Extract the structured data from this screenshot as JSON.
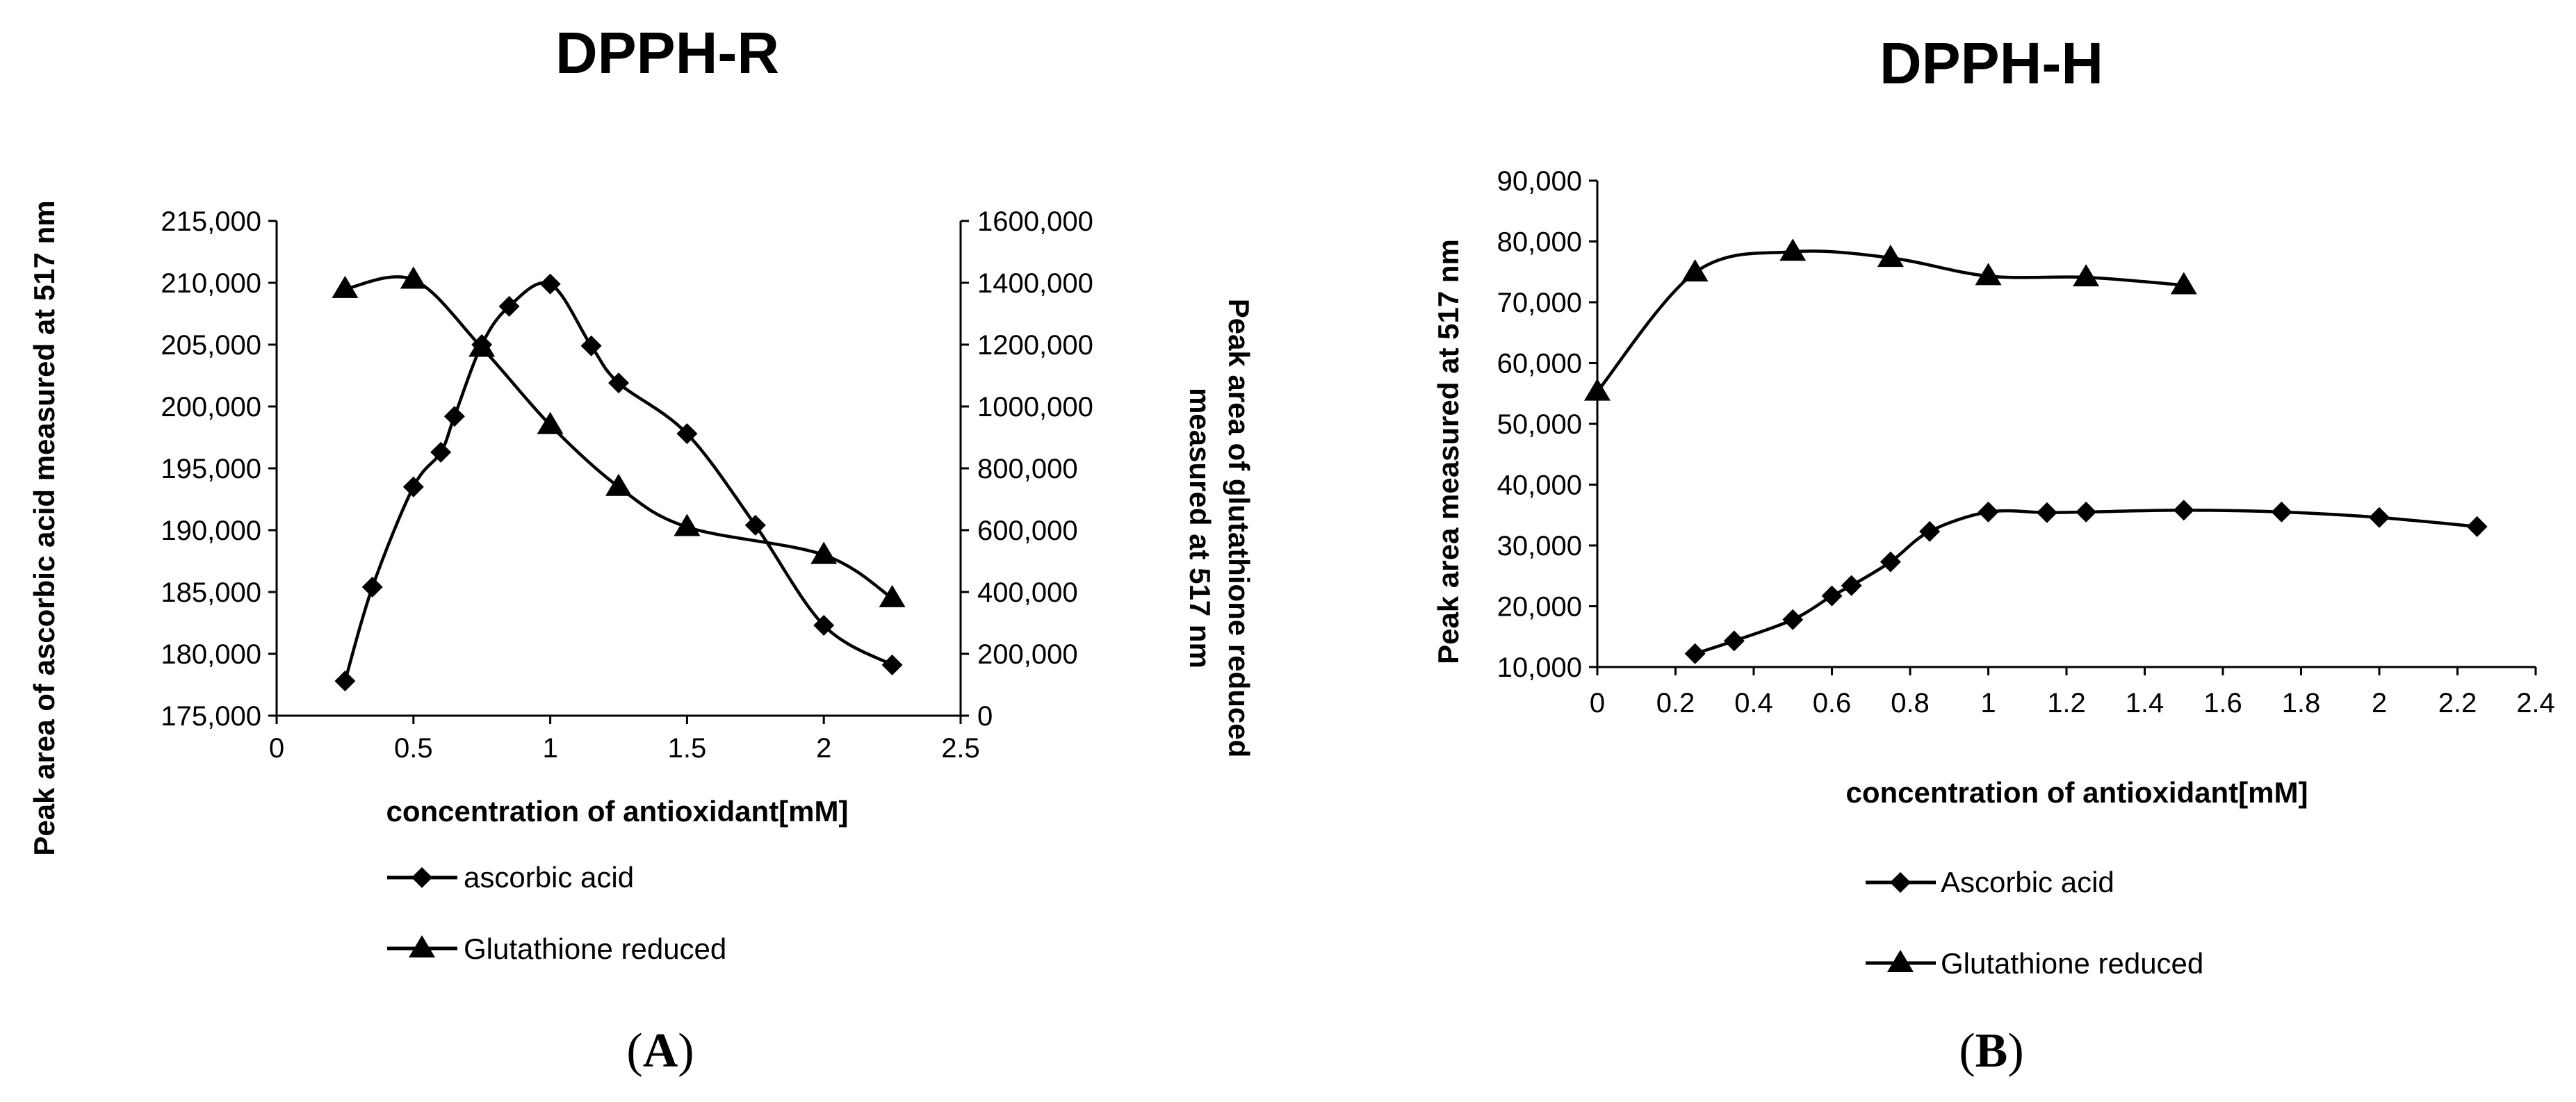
{
  "chart_data": [
    {
      "id": "A",
      "type": "line",
      "title": "DPPH-R",
      "panel_label_open": "(",
      "panel_label_letter": "A",
      "panel_label_close": ")",
      "xlabel": "concentration of antioxidant[mM]",
      "ylabel": "Peak area of ascorbic acid measured at 517 nm",
      "y2label_line1": "Peak area of glutathione reduced",
      "y2label_line2": "measured at 517 nm",
      "xlim": [
        0,
        2.5
      ],
      "xticks": [
        0,
        0.5,
        1,
        1.5,
        2,
        2.5
      ],
      "xtick_labels": [
        "0",
        "0.5",
        "1",
        "1.5",
        "2",
        "2.5"
      ],
      "ylim": [
        175000,
        215000
      ],
      "yticks": [
        175000,
        180000,
        185000,
        190000,
        195000,
        200000,
        205000,
        210000,
        215000
      ],
      "ytick_labels": [
        "175,000",
        "180,000",
        "185,000",
        "190,000",
        "195,000",
        "200,000",
        "205,000",
        "210,000",
        "215,000"
      ],
      "y2lim": [
        0,
        1600000
      ],
      "y2ticks": [
        0,
        200000,
        400000,
        600000,
        800000,
        1000000,
        1200000,
        1400000,
        1600000
      ],
      "y2tick_labels": [
        "0",
        "200,000",
        "400,000",
        "600,000",
        "800,000",
        "1000,000",
        "1200,000",
        "1400,000",
        "1600,000"
      ],
      "series": [
        {
          "name": "ascorbic acid",
          "marker": "diamond",
          "axis": "left",
          "x": [
            0.25,
            0.35,
            0.5,
            0.6,
            0.65,
            0.75,
            0.85,
            1.0,
            1.15,
            1.25,
            1.5,
            1.75,
            2.0,
            2.25
          ],
          "y": [
            177800,
            185400,
            193500,
            196300,
            199200,
            205000,
            208100,
            209900,
            204900,
            201900,
            197800,
            190400,
            182300,
            179100
          ]
        },
        {
          "name": "Glutathione reduced",
          "marker": "triangle",
          "axis": "right",
          "x": [
            0.25,
            0.5,
            0.75,
            1.0,
            1.25,
            1.5,
            2.0,
            2.25
          ],
          "y": [
            1380000,
            1410000,
            1190000,
            940000,
            740000,
            610000,
            520000,
            380000
          ]
        }
      ],
      "legend": [
        "ascorbic acid",
        "Glutathione reduced"
      ],
      "legend_position": "bottom"
    },
    {
      "id": "B",
      "type": "line",
      "title": "DPPH-H",
      "panel_label_open": "(",
      "panel_label_letter": "B",
      "panel_label_close": ")",
      "xlabel": "concentration of antioxidant[mM]",
      "ylabel": "Peak area measured at 517 nm",
      "xlim": [
        0,
        2.4
      ],
      "xticks": [
        0,
        0.2,
        0.4,
        0.6,
        0.8,
        1,
        1.2,
        1.4,
        1.6,
        1.8,
        2,
        2.2,
        2.4
      ],
      "xtick_labels": [
        "0",
        "0.2",
        "0.4",
        "0.6",
        "0.8",
        "1",
        "1.2",
        "1.4",
        "1.6",
        "1.8",
        "2",
        "2.2",
        "2.4"
      ],
      "ylim": [
        10000,
        90000
      ],
      "yticks": [
        10000,
        20000,
        30000,
        40000,
        50000,
        60000,
        70000,
        80000,
        90000
      ],
      "ytick_labels": [
        "10,000",
        "20,000",
        "30,000",
        "40,000",
        "50,000",
        "60,000",
        "70,000",
        "80,000",
        "90,000"
      ],
      "series": [
        {
          "name": "Ascorbic acid",
          "marker": "diamond",
          "x": [
            0.25,
            0.35,
            0.5,
            0.6,
            0.65,
            0.75,
            0.85,
            1.0,
            1.15,
            1.25,
            1.5,
            1.75,
            2.0,
            2.25
          ],
          "y": [
            12200,
            14300,
            17800,
            21700,
            23400,
            27300,
            32300,
            35500,
            35400,
            35500,
            35800,
            35500,
            34600,
            33100
          ]
        },
        {
          "name": "Glutathione reduced",
          "marker": "triangle",
          "x": [
            0,
            0.25,
            0.5,
            0.75,
            1.0,
            1.25,
            1.5
          ],
          "y": [
            55300,
            74900,
            78300,
            77300,
            74300,
            74100,
            72800
          ]
        }
      ],
      "legend": [
        "Ascorbic acid",
        "Glutathione reduced"
      ],
      "legend_position": "bottom"
    }
  ]
}
